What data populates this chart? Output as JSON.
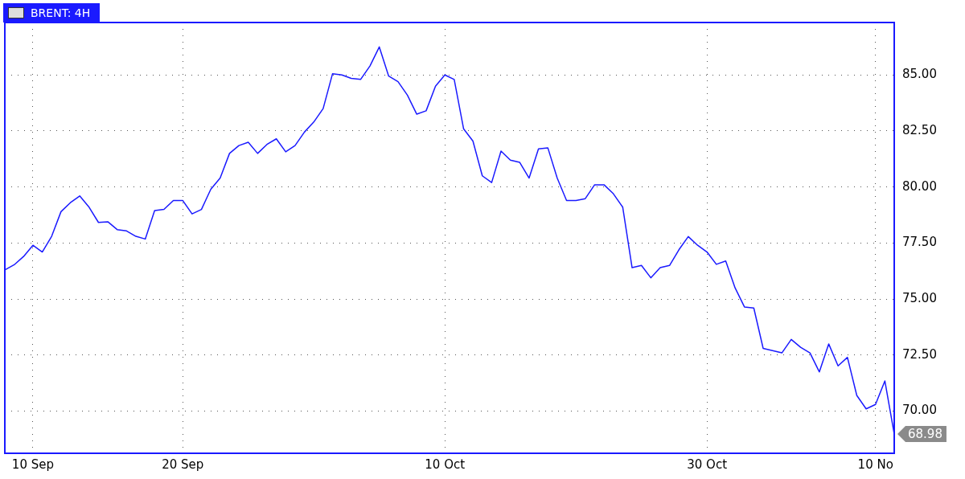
{
  "chart_data": {
    "type": "line",
    "title": "BRENT: 4H",
    "categories": [
      null,
      null,
      null,
      "10 Sep",
      null,
      null,
      null,
      null,
      null,
      null,
      null,
      null,
      null,
      null,
      null,
      null,
      null,
      null,
      null,
      "20 Sep",
      null,
      null,
      null,
      null,
      null,
      null,
      null,
      null,
      null,
      null,
      null,
      null,
      null,
      null,
      null,
      null,
      null,
      null,
      null,
      null,
      null,
      null,
      null,
      null,
      null,
      null,
      null,
      "10 Oct",
      null,
      null,
      null,
      null,
      null,
      null,
      null,
      null,
      null,
      null,
      null,
      null,
      null,
      null,
      null,
      null,
      null,
      null,
      null,
      null,
      null,
      null,
      null,
      null,
      null,
      null,
      null,
      "30 Oct",
      null,
      null,
      null,
      null,
      null,
      null,
      null,
      null,
      null,
      null,
      null,
      null,
      null,
      null,
      null,
      null,
      null,
      "10 No",
      null,
      null
    ],
    "series": [
      {
        "color": "#1a1aff",
        "values": [
          76.3,
          76.53,
          76.9,
          77.4,
          77.1,
          77.8,
          78.9,
          79.3,
          79.6,
          79.1,
          78.42,
          78.45,
          78.1,
          78.04,
          77.8,
          77.68,
          78.95,
          79.0,
          79.4,
          79.4,
          78.8,
          79.0,
          79.9,
          80.4,
          81.5,
          81.85,
          82.0,
          81.5,
          81.9,
          82.15,
          81.57,
          81.85,
          82.45,
          82.9,
          83.5,
          85.05,
          85.0,
          84.85,
          84.8,
          85.4,
          86.25,
          84.95,
          84.7,
          84.1,
          83.25,
          83.4,
          84.5,
          85.0,
          84.8,
          82.6,
          82.05,
          80.5,
          80.2,
          81.6,
          81.2,
          81.1,
          80.4,
          81.7,
          81.75,
          80.4,
          79.4,
          79.4,
          79.48,
          80.1,
          80.1,
          79.7,
          79.1,
          76.4,
          76.5,
          75.95,
          76.4,
          76.5,
          77.2,
          77.79,
          77.4,
          77.1,
          76.55,
          76.7,
          75.5,
          74.65,
          74.6,
          72.8,
          72.7,
          72.6,
          73.2,
          72.85,
          72.6,
          71.75,
          73.0,
          72.02,
          72.4,
          70.7,
          70.1,
          70.3,
          71.35,
          68.98
        ]
      }
    ],
    "ylim": [
      68.12,
      87.34
    ],
    "yticks": [
      {
        "value": 70,
        "label": "70.00"
      },
      {
        "value": 72.5,
        "label": "72.50"
      },
      {
        "value": 75,
        "label": "75.00"
      },
      {
        "value": 77.5,
        "label": "77.50"
      },
      {
        "value": 80,
        "label": "80.00"
      },
      {
        "value": 82.5,
        "label": "82.50"
      },
      {
        "value": 85,
        "label": "85.00"
      }
    ],
    "annotations": [
      "68.98"
    ],
    "grid": true,
    "legend": false,
    "marker": "none",
    "line_style": "solid"
  }
}
